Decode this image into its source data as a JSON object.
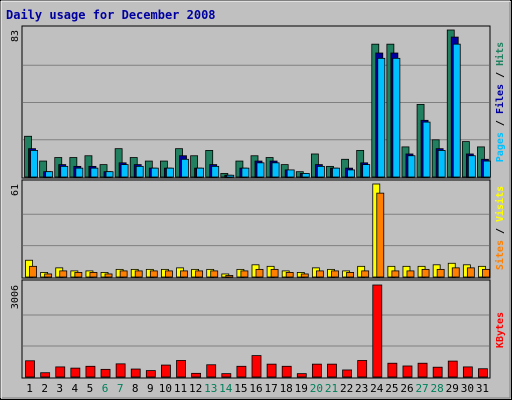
{
  "chart_data": {
    "type": "bar",
    "title": "Daily usage for December 2008",
    "categories": [
      "1",
      "2",
      "3",
      "4",
      "5",
      "6",
      "7",
      "8",
      "9",
      "10",
      "11",
      "12",
      "13",
      "14",
      "15",
      "16",
      "17",
      "18",
      "19",
      "20",
      "21",
      "22",
      "23",
      "24",
      "25",
      "26",
      "27",
      "28",
      "29",
      "30",
      "31"
    ],
    "weekend_days": [
      "6",
      "7",
      "13",
      "14",
      "20",
      "21",
      "27",
      "28"
    ],
    "panels": [
      {
        "id": "top",
        "ymax": 83,
        "ymax_label": "83",
        "legend": [
          {
            "text": "Pages",
            "color": "#00c0ff"
          },
          {
            "text": " / ",
            "color": "#000000"
          },
          {
            "text": "Files",
            "color": "#0000a0"
          },
          {
            "text": " / ",
            "color": "#000000"
          },
          {
            "text": "Hits",
            "color": "#208060"
          }
        ],
        "series": [
          {
            "name": "Hits",
            "color": "#208060",
            "values": [
              23,
              9,
              11,
              11,
              12,
              7,
              16,
              11,
              9,
              9,
              16,
              12,
              15,
              2,
              9,
              12,
              11,
              7,
              3,
              13,
              6,
              10,
              15,
              75,
              75,
              17,
              41,
              21,
              83,
              20,
              17
            ]
          },
          {
            "name": "Files",
            "color": "#0000a0",
            "values": [
              16,
              3,
              7,
              6,
              6,
              3,
              8,
              7,
              5,
              5,
              12,
              5,
              7,
              1,
              5,
              9,
              9,
              4,
              2,
              7,
              5,
              5,
              8,
              70,
              70,
              13,
              32,
              16,
              79,
              13,
              10
            ]
          },
          {
            "name": "Pages",
            "color": "#00c0ff",
            "values": [
              15,
              3,
              6,
              5,
              5,
              3,
              7,
              6,
              5,
              5,
              10,
              5,
              6,
              1,
              5,
              8,
              8,
              4,
              2,
              6,
              5,
              4,
              7,
              67,
              67,
              12,
              31,
              15,
              75,
              12,
              9
            ]
          }
        ]
      },
      {
        "id": "middle",
        "ymax": 61,
        "ymax_label": "61",
        "legend": [
          {
            "text": "Sites",
            "color": "#ff8000"
          },
          {
            "text": " / ",
            "color": "#000000"
          },
          {
            "text": "Visits",
            "color": "#ffff00"
          }
        ],
        "series": [
          {
            "name": "Visits",
            "color": "#ffff00",
            "values": [
              11,
              3,
              6,
              4,
              4,
              3,
              5,
              5,
              5,
              5,
              6,
              5,
              5,
              2,
              5,
              8,
              7,
              4,
              3,
              6,
              5,
              4,
              7,
              61,
              7,
              7,
              7,
              8,
              9,
              8,
              7
            ]
          },
          {
            "name": "Sites",
            "color": "#ff8000",
            "values": [
              7,
              2,
              4,
              3,
              3,
              2,
              4,
              4,
              4,
              4,
              4,
              4,
              4,
              1,
              4,
              5,
              5,
              3,
              2,
              4,
              4,
              3,
              4,
              55,
              4,
              4,
              5,
              5,
              6,
              6,
              5
            ]
          }
        ]
      },
      {
        "id": "bottom",
        "ymax": 3006,
        "ymax_label": "3006",
        "legend": [
          {
            "text": "KBytes",
            "color": "#ff0000"
          }
        ],
        "series": [
          {
            "name": "KBytes",
            "color": "#ff0000",
            "values": [
              530,
              140,
              330,
              290,
              350,
              250,
              430,
              260,
              210,
              390,
              540,
              120,
              400,
              110,
              350,
              700,
              420,
              350,
              110,
              420,
              420,
              230,
              540,
              3006,
              450,
              360,
              450,
              320,
              520,
              330,
              270
            ]
          }
        ]
      }
    ]
  }
}
